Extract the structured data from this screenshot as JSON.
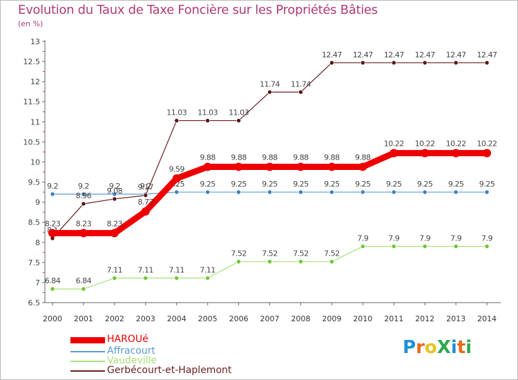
{
  "header": {
    "title": "Evolution du Taux de Taxe Foncière sur les Propriétés Bâties",
    "unit": "(en %)"
  },
  "logo": {
    "text": "ProXiti",
    "letters": [
      "P",
      "r",
      "o",
      "X",
      "i",
      "t",
      "i"
    ],
    "colors": [
      "#1e90d8",
      "#e86a1b",
      "#e8c31b",
      "#2fa84f",
      "#1e90d8",
      "#e86a1b",
      "#2fa84f"
    ]
  },
  "chart_data": {
    "type": "line",
    "title": "Evolution du Taux de Taxe Foncière sur les Propriétés Bâties",
    "ylabel": "(en %)",
    "xlabel": "",
    "ylim": [
      6.5,
      13
    ],
    "yticks": [
      "6.5",
      "7",
      "7.5",
      "8",
      "8.5",
      "9",
      "9.5",
      "10",
      "10.5",
      "11",
      "11.5",
      "12",
      "12.5",
      "13"
    ],
    "categories": [
      "2000",
      "2001",
      "2002",
      "2003",
      "2004",
      "2005",
      "2006",
      "2007",
      "2008",
      "2009",
      "2010",
      "2011",
      "2012",
      "2013",
      "2014"
    ],
    "series": [
      {
        "name": "Gerbécourt-et-Haplemont",
        "color": "#6b1f1f",
        "point_color": "#5a1414",
        "values": [
          8.1,
          8.96,
          9.08,
          9.17,
          11.03,
          11.03,
          11.03,
          11.74,
          11.74,
          12.47,
          12.47,
          12.47,
          12.47,
          12.47,
          12.47
        ],
        "labels": [
          "8.1",
          "8.96",
          "9.08",
          "9.17",
          "11.03",
          "11.03",
          "11.03",
          "11.74",
          "11.74",
          "12.47",
          "12.47",
          "12.47",
          "12.47",
          "12.47",
          "12.47"
        ]
      },
      {
        "name": "Affracourt",
        "color": "#5b9bd5",
        "point_color": "#3d7fc0",
        "values": [
          9.2,
          9.2,
          9.2,
          9.2,
          9.25,
          9.25,
          9.25,
          9.25,
          9.25,
          9.25,
          9.25,
          9.25,
          9.25,
          9.25,
          9.25
        ],
        "labels": [
          "9.2",
          "9.2",
          "9.2",
          "9.2",
          "9.25",
          "9.25",
          "9.25",
          "9.25",
          "9.25",
          "9.25",
          "9.25",
          "9.25",
          "9.25",
          "9.25",
          "9.25"
        ]
      },
      {
        "name": "Vaudeville",
        "color": "#a8e07a",
        "point_color": "#6cc631",
        "values": [
          6.84,
          6.84,
          7.11,
          7.11,
          7.11,
          7.11,
          7.52,
          7.52,
          7.52,
          7.52,
          7.9,
          7.9,
          7.9,
          7.9,
          7.9
        ],
        "labels": [
          "6.84",
          "6.84",
          "7.11",
          "7.11",
          "7.11",
          "7.11",
          "7.52",
          "7.52",
          "7.52",
          "7.52",
          "7.9",
          "7.9",
          "7.9",
          "7.9",
          "7.9"
        ]
      },
      {
        "name": "HAROUé",
        "color": "#ee0000",
        "point_color": "#ee0000",
        "values": [
          8.23,
          8.23,
          8.23,
          8.77,
          9.59,
          9.88,
          9.88,
          9.88,
          9.88,
          9.88,
          9.88,
          10.22,
          10.22,
          10.22,
          10.22
        ],
        "labels": [
          "8.23",
          "8.23",
          "8.23",
          "8.77",
          "9.59",
          "9.88",
          "9.88",
          "9.88",
          "9.88",
          "9.88",
          "9.88",
          "10.22",
          "10.22",
          "10.22",
          "10.22"
        ]
      }
    ],
    "legend": [
      {
        "name": "HAROUé",
        "color": "#ee0000",
        "weight": "thick",
        "text_color": "#ee0000"
      },
      {
        "name": "Affracourt",
        "color": "#5b9bd5",
        "weight": "thin",
        "text_color": "#5b9bd5"
      },
      {
        "name": "Vaudeville",
        "color": "#a8e07a",
        "weight": "thin",
        "text_color": "#a8e07a"
      },
      {
        "name": "Gerbécourt-et-Haplemont",
        "color": "#6b1f1f",
        "weight": "thin",
        "text_color": "#6b1f1f"
      }
    ],
    "legend_position": "bottom-left"
  }
}
